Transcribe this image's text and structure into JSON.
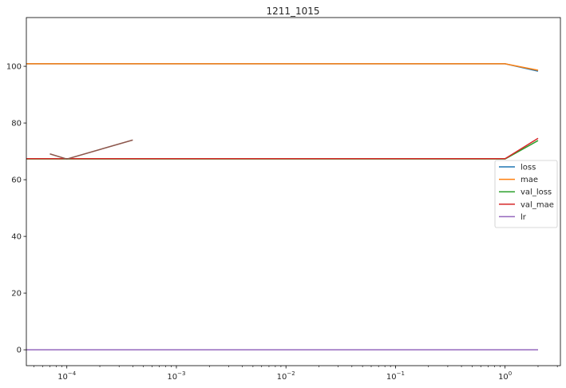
{
  "chart_data": {
    "type": "line",
    "title": "1211_1015",
    "xlabel": "",
    "ylabel": "",
    "xscale": "log",
    "xlim": [
      4.27e-05,
      3.2
    ],
    "ylim": [
      -5.6,
      117.2
    ],
    "x_ticks": [
      {
        "value": 0.0001,
        "mant": "10",
        "exp": "−4"
      },
      {
        "value": 0.001,
        "mant": "10",
        "exp": "−3"
      },
      {
        "value": 0.01,
        "mant": "10",
        "exp": "−2"
      },
      {
        "value": 0.1,
        "mant": "10",
        "exp": "−1"
      },
      {
        "value": 1,
        "mant": "10",
        "exp": "0"
      }
    ],
    "y_ticks": [
      {
        "value": 0,
        "label": "0"
      },
      {
        "value": 20,
        "label": "20"
      },
      {
        "value": 40,
        "label": "40"
      },
      {
        "value": 60,
        "label": "60"
      },
      {
        "value": 80,
        "label": "80"
      },
      {
        "value": 100,
        "label": "100"
      }
    ],
    "grid": false,
    "legend": {
      "position": "center-right"
    },
    "series": [
      {
        "name": "loss",
        "color": "#1f77b4",
        "x": [
          4.27e-05,
          1,
          2
        ],
        "y": [
          100.9,
          100.9,
          98.3
        ]
      },
      {
        "name": "mae",
        "color": "#ff7f0e",
        "x": [
          4.27e-05,
          1,
          2
        ],
        "y": [
          100.9,
          100.9,
          98.6
        ]
      },
      {
        "name": "val_loss",
        "color": "#2ca02c",
        "x": [
          4.27e-05,
          1,
          2
        ],
        "y": [
          67.3,
          67.3,
          73.8
        ]
      },
      {
        "name": "val_mae",
        "color": "#d62728",
        "x": [
          4.27e-05,
          1,
          2
        ],
        "y": [
          67.4,
          67.4,
          74.6
        ]
      },
      {
        "name": "lr",
        "color": "#9467bd",
        "x": [
          4.27e-05,
          1,
          2
        ],
        "y": [
          0.001,
          0.001,
          0.001
        ]
      },
      {
        "name": "",
        "color": "#8c564b",
        "x": [
          7e-05,
          0.0001,
          0.0004
        ],
        "y": [
          69.1,
          67.3,
          74.0
        ]
      }
    ]
  }
}
